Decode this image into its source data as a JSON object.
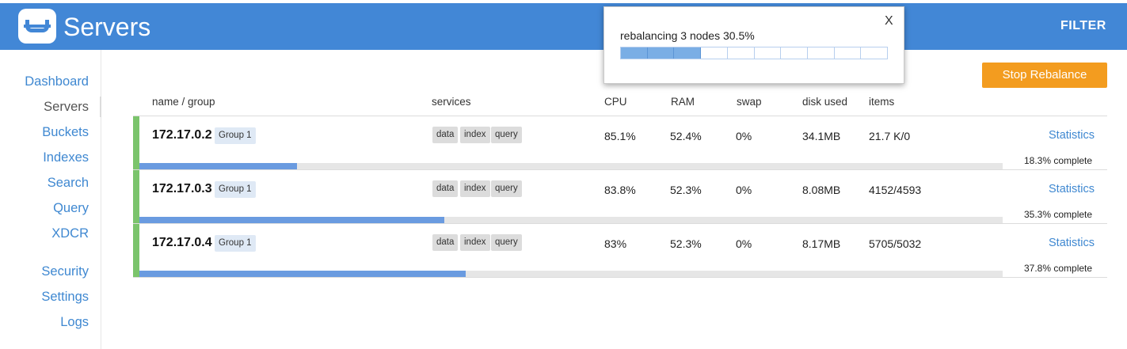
{
  "app": {
    "title": "Servers",
    "filter_label": "FILTER"
  },
  "colors": {
    "header": "#4287d6",
    "accent_green": "#7bc46c",
    "progress": "#6a9be0",
    "stop_button": "#f39c1f",
    "link": "#3f88d1"
  },
  "sidebar": {
    "items": [
      {
        "label": "Dashboard"
      },
      {
        "label": "Servers"
      },
      {
        "label": "Buckets"
      },
      {
        "label": "Indexes"
      },
      {
        "label": "Search"
      },
      {
        "label": "Query"
      },
      {
        "label": "XDCR"
      },
      {
        "label": "Security"
      },
      {
        "label": "Settings"
      },
      {
        "label": "Logs"
      }
    ],
    "active": "Servers"
  },
  "popup": {
    "close_label": "X",
    "message": "rebalancing 3 nodes 30.5%",
    "progress_percent": 30.5,
    "segments_total": 10,
    "segments_filled": 3
  },
  "actions": {
    "stop_rebalance_label": "Stop Rebalance"
  },
  "table": {
    "headers": {
      "name_group": "name / group",
      "services": "services",
      "cpu": "CPU",
      "ram": "RAM",
      "swap": "swap",
      "disk_used": "disk used",
      "items": "items"
    },
    "rows": [
      {
        "host": "172.17.0.2",
        "group": "Group 1",
        "services": [
          "data",
          "index",
          "query"
        ],
        "cpu": "85.1%",
        "ram": "52.4%",
        "swap": "0%",
        "disk_used": "34.1MB",
        "items": "21.7 K/0",
        "statistics_label": "Statistics",
        "progress_text": "18.3% complete",
        "progress_percent": 18.3
      },
      {
        "host": "172.17.0.3",
        "group": "Group 1",
        "services": [
          "data",
          "index",
          "query"
        ],
        "cpu": "83.8%",
        "ram": "52.3%",
        "swap": "0%",
        "disk_used": "8.08MB",
        "items": "4152/4593",
        "statistics_label": "Statistics",
        "progress_text": "35.3% complete",
        "progress_percent": 35.3
      },
      {
        "host": "172.17.0.4",
        "group": "Group 1",
        "services": [
          "data",
          "index",
          "query"
        ],
        "cpu": "83%",
        "ram": "52.3%",
        "swap": "0%",
        "disk_used": "8.17MB",
        "items": "5705/5032",
        "statistics_label": "Statistics",
        "progress_text": "37.8% complete",
        "progress_percent": 37.8
      }
    ]
  }
}
